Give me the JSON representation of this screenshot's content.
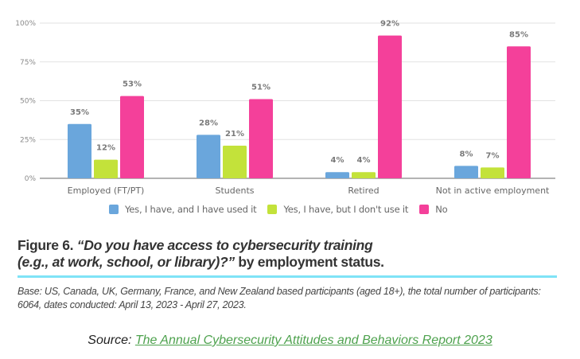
{
  "chart_data": {
    "type": "bar",
    "title": "",
    "xlabel": "",
    "ylabel": "",
    "ylim": [
      0,
      100
    ],
    "yticks": [
      "0%",
      "25%",
      "50%",
      "75%",
      "100%"
    ],
    "ytick_values": [
      0,
      25,
      50,
      75,
      100
    ],
    "grid": true,
    "legend_position": "bottom",
    "categories": [
      "Employed (FT/PT)",
      "Students",
      "Retired",
      "Not in active employment"
    ],
    "series": [
      {
        "name": "Yes, I have, and I have used it",
        "color": "#6aa6dc",
        "values": [
          35,
          28,
          4,
          8
        ],
        "labels": [
          "35%",
          "28%",
          "4%",
          "8%"
        ]
      },
      {
        "name": "Yes, I have, but I don't use it",
        "color": "#c3e23a",
        "values": [
          12,
          21,
          4,
          7
        ],
        "labels": [
          "12%",
          "21%",
          "4%",
          "7%"
        ]
      },
      {
        "name": "No",
        "color": "#f4409a",
        "values": [
          53,
          51,
          92,
          85
        ],
        "labels": [
          "53%",
          "51%",
          "92%",
          "85%"
        ]
      }
    ]
  },
  "caption": {
    "prefix": "Figure 6. ",
    "question_line1": "“Do you have access to cybersecurity training",
    "question_line2": "(e.g., at work, school, or library)?”",
    "suffix": " by employment status."
  },
  "base_note": "Base: US, Canada, UK, Germany, France, and New Zealand based participants (aged 18+), the total number of participants: 6064, dates conducted: April 13, 2023 - April 27, 2023.",
  "source": {
    "label": "Source: ",
    "link_text": "The Annual Cybersecurity Attitudes and Behaviors Report 2023"
  },
  "colors": {
    "rule": "#7fe3f7",
    "link": "#4ea24e"
  }
}
